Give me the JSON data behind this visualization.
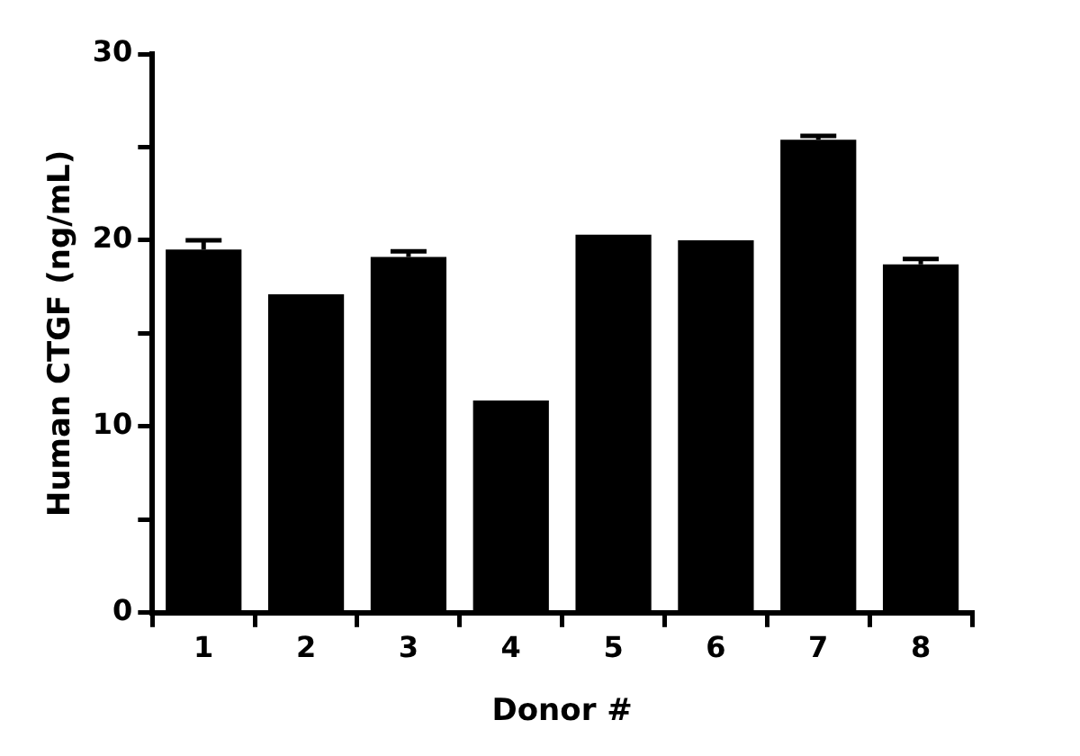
{
  "chart_data": {
    "type": "bar",
    "xlabel": "Donor #",
    "ylabel": "Human CTGF (ng/mL)",
    "categories": [
      "1",
      "2",
      "3",
      "4",
      "5",
      "6",
      "7",
      "8"
    ],
    "values": [
      19.5,
      17.1,
      19.1,
      11.4,
      20.3,
      20.0,
      25.4,
      18.7
    ],
    "errors": [
      0.5,
      null,
      0.3,
      null,
      null,
      null,
      0.2,
      0.3
    ],
    "color": "#000000",
    "ylim": [
      0,
      30
    ],
    "yticks": [
      0,
      {
        "value": 5,
        "label": null
      },
      10,
      {
        "value": 15,
        "label": null
      },
      20,
      {
        "value": 25,
        "label": null
      },
      30
    ],
    "grid": false,
    "legend": false
  }
}
